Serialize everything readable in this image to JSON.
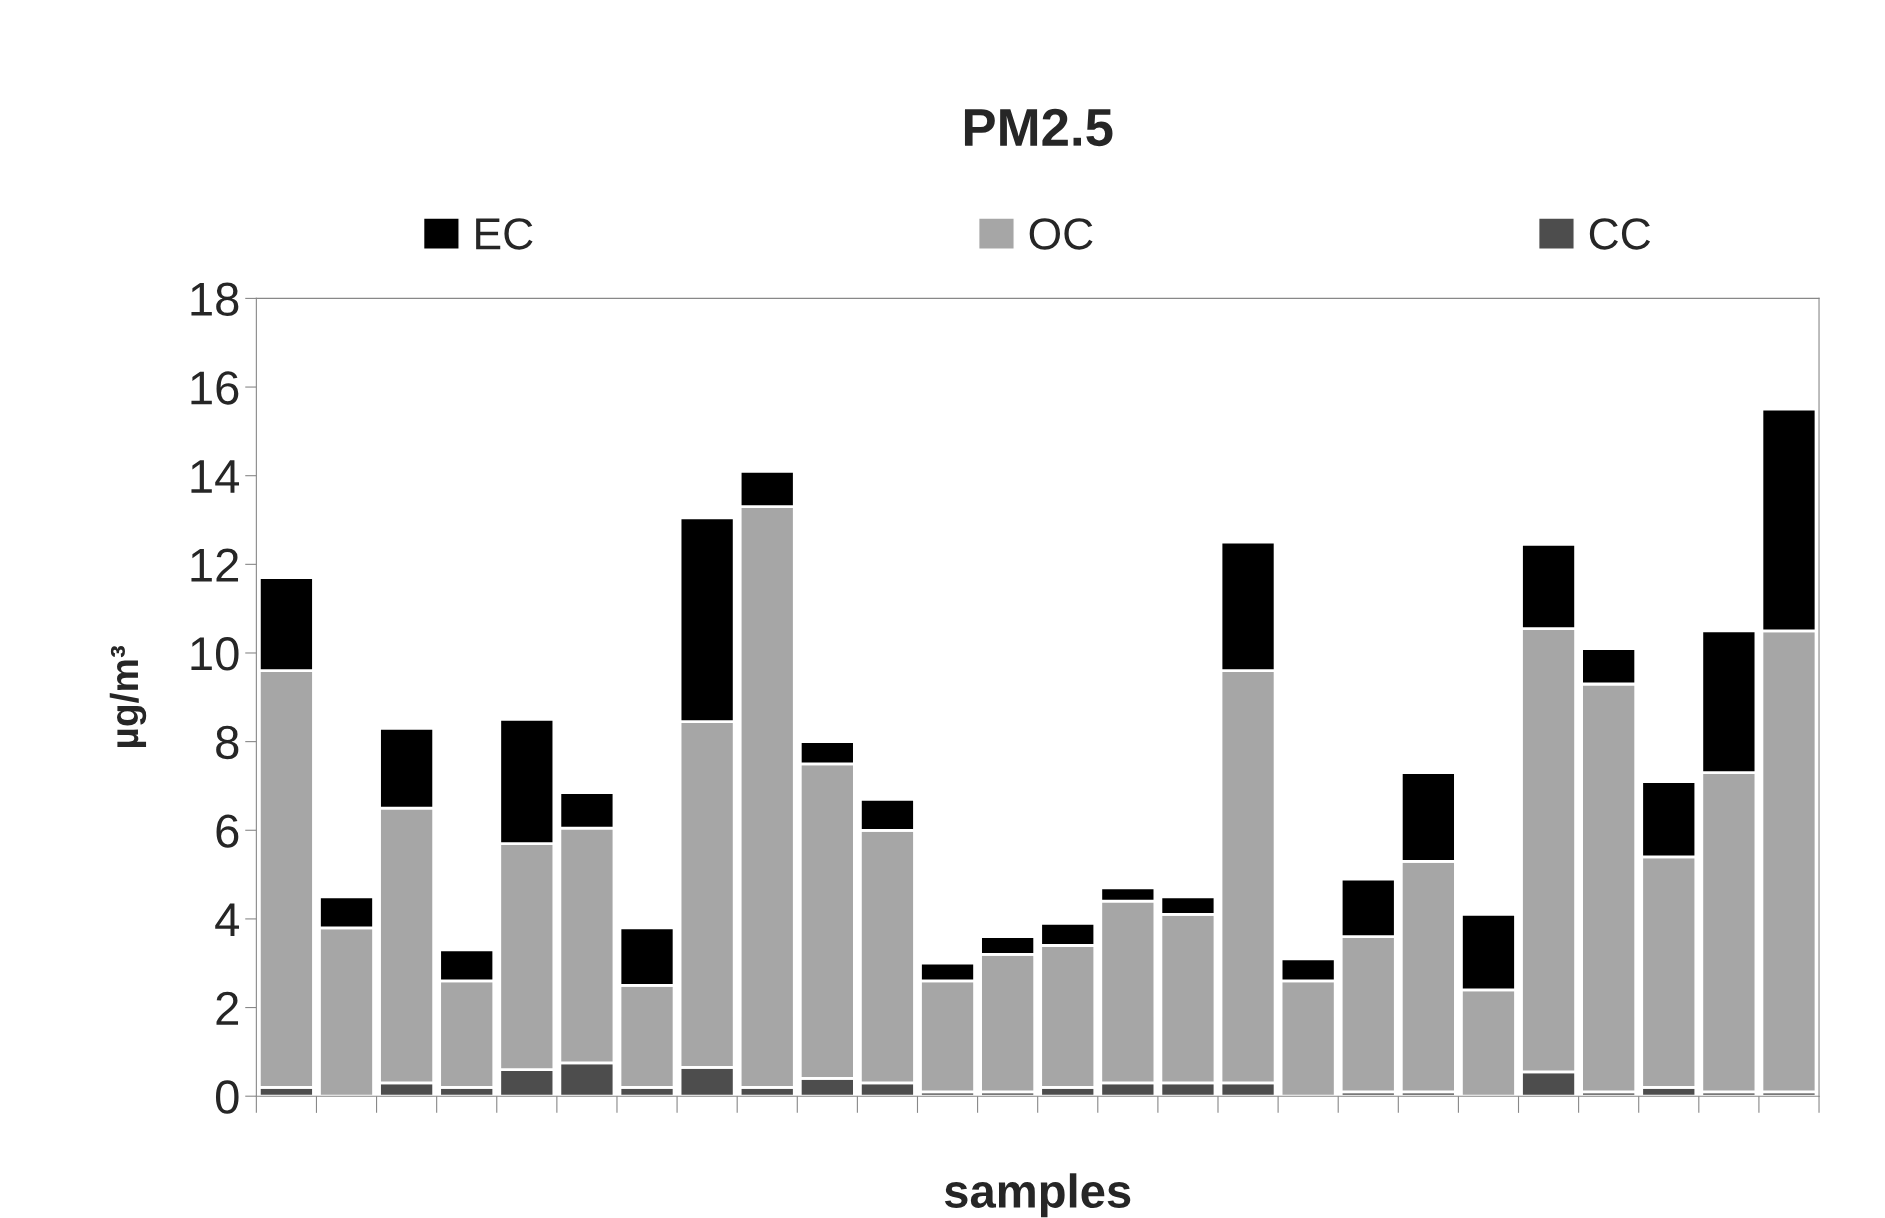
{
  "chart_data": {
    "type": "bar",
    "title": "PM2.5",
    "xlabel": "samples",
    "ylabel": "µg/m³",
    "stacked": true,
    "legend": "top",
    "grid": false,
    "categories": [
      null,
      null,
      null,
      null,
      null,
      null,
      null,
      null,
      null,
      null,
      null,
      null,
      null,
      null,
      null,
      null,
      null,
      null,
      null,
      null,
      null,
      null,
      null,
      null,
      null,
      null
    ],
    "ylim": [
      0,
      18
    ],
    "yticks": [
      0,
      2,
      4,
      6,
      8,
      10,
      12,
      14,
      16,
      18
    ],
    "series": [
      {
        "name": "CC",
        "color": "#4d4d4d",
        "values": [
          0.2,
          0,
          0.3,
          0.2,
          0.6,
          0.75,
          0.2,
          0.65,
          0.2,
          0.4,
          0.3,
          0.1,
          0.1,
          0.2,
          0.3,
          0.3,
          0.3,
          0,
          0.1,
          0.1,
          0,
          0.55,
          0.1,
          0.2,
          0.1,
          0.1
        ]
      },
      {
        "name": "OC",
        "color": "#a6a6a6",
        "values": [
          9.4,
          3.8,
          6.2,
          2.4,
          5.1,
          5.3,
          2.3,
          7.8,
          13.1,
          7.1,
          5.7,
          2.5,
          3.1,
          3.2,
          4.1,
          3.8,
          9.3,
          2.6,
          3.5,
          5.2,
          2.4,
          10.0,
          9.2,
          5.2,
          7.2,
          10.4
        ]
      },
      {
        "name": "EC",
        "color": "#000000",
        "values": [
          2.1,
          0.7,
          1.8,
          0.7,
          2.8,
          0.8,
          1.3,
          4.6,
          0.8,
          0.5,
          0.7,
          0.4,
          0.4,
          0.5,
          0.3,
          0.4,
          2.9,
          0.5,
          1.3,
          2.0,
          1.7,
          1.9,
          0.8,
          1.7,
          3.2,
          5.0
        ]
      }
    ]
  }
}
